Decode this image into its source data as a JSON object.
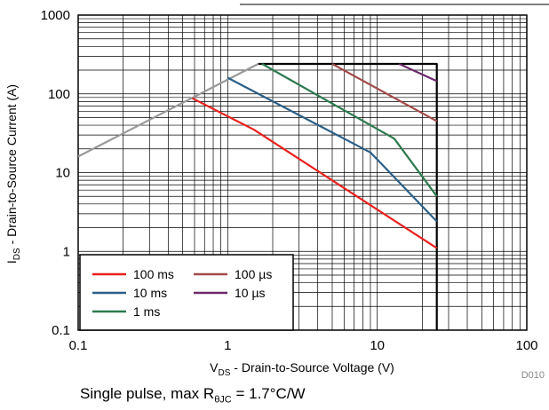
{
  "chart_data": {
    "type": "line",
    "x_scale": "log",
    "y_scale": "log",
    "xlim": [
      0.1,
      100
    ],
    "ylim": [
      0.1,
      1000
    ],
    "x_ticks": [
      "0.1",
      "1",
      "10",
      "100"
    ],
    "y_ticks": [
      "0.1",
      "1",
      "10",
      "100",
      "1000"
    ],
    "xlabel_main": "V",
    "xlabel_sub": "DS",
    "xlabel_rest": " - Drain-to-Source Voltage (V)",
    "ylabel_main": "I",
    "ylabel_sub": "DS",
    "ylabel_rest": " - Drain-to-Source Current (A)",
    "grid": true,
    "legend_position": "bottom-left",
    "figure_id": "D010",
    "series": [
      {
        "name": "100 ms",
        "color": "#e8211d",
        "x": [
          0.58,
          1.5,
          25
        ],
        "y": [
          88,
          35,
          1.1
        ]
      },
      {
        "name": "10 ms",
        "color": "#2b5f86",
        "x": [
          1.0,
          9.0,
          25
        ],
        "y": [
          160,
          18,
          2.4
        ]
      },
      {
        "name": "1 ms",
        "color": "#2d7a4e",
        "x": [
          1.7,
          13,
          25
        ],
        "y": [
          240,
          27,
          5
        ]
      },
      {
        "name": "100 µs",
        "color": "#a34a4a",
        "x": [
          5,
          25
        ],
        "y": [
          240,
          45
        ]
      },
      {
        "name": "10 µs",
        "color": "#6b2a6b",
        "x": [
          14,
          25
        ],
        "y": [
          240,
          145
        ]
      },
      {
        "name": "",
        "color": "#999999",
        "x": [
          0.1,
          1.6
        ],
        "y": [
          16,
          240
        ]
      },
      {
        "name": "",
        "color": "#000000",
        "x": [
          1.6,
          25,
          25
        ],
        "y": [
          240,
          240,
          0.1
        ]
      }
    ]
  },
  "footer": {
    "text_before": "Single pulse, max R",
    "sub": "θJC",
    "text_after": " = 1.7°C/W"
  }
}
